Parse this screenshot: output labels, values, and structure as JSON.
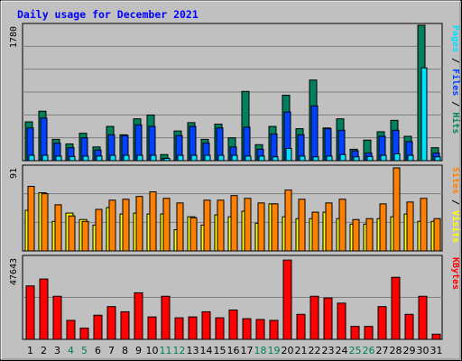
{
  "title": "Daily usage for December 2021",
  "chart_data": [
    {
      "type": "bar",
      "panel": "top",
      "ymax_label": "1780",
      "ylim": [
        0,
        1780
      ],
      "x": [
        1,
        2,
        3,
        4,
        5,
        6,
        7,
        8,
        9,
        10,
        11,
        12,
        13,
        14,
        15,
        16,
        17,
        18,
        19,
        20,
        21,
        22,
        23,
        24,
        25,
        26,
        27,
        28,
        29,
        30,
        31
      ],
      "series": [
        {
          "name": "Hits",
          "color": "#00805c",
          "values": [
            510,
            650,
            280,
            220,
            360,
            180,
            450,
            340,
            550,
            600,
            80,
            390,
            500,
            280,
            480,
            300,
            910,
            210,
            450,
            860,
            420,
            1060,
            430,
            550,
            150,
            270,
            380,
            530,
            320,
            1780,
            170
          ]
        },
        {
          "name": "Files",
          "color": "#0040ff",
          "values": [
            430,
            560,
            230,
            170,
            300,
            140,
            340,
            330,
            470,
            450,
            30,
            330,
            450,
            230,
            430,
            180,
            440,
            150,
            350,
            640,
            340,
            720,
            420,
            400,
            130,
            100,
            320,
            400,
            250,
            0,
            100
          ]
        },
        {
          "name": "Pages",
          "color": "#00e0ff",
          "values": [
            70,
            70,
            60,
            55,
            60,
            60,
            70,
            70,
            70,
            70,
            30,
            70,
            70,
            70,
            70,
            70,
            60,
            60,
            50,
            160,
            60,
            50,
            60,
            80,
            50,
            55,
            70,
            90,
            70,
            1220,
            50
          ]
        }
      ]
    },
    {
      "type": "bar",
      "panel": "middle",
      "ymax_label": "91",
      "ylim": [
        0,
        91
      ],
      "series": [
        {
          "name": "Visits",
          "color": "#ffff00",
          "values": [
            44,
            63,
            32,
            41,
            34,
            28,
            47,
            40,
            41,
            40,
            40,
            23,
            37,
            28,
            39,
            37,
            43,
            30,
            51,
            37,
            35,
            35,
            42,
            35,
            29,
            29,
            35,
            37,
            40,
            32,
            32
          ]
        },
        {
          "name": "Sites",
          "color": "#ff8000",
          "values": [
            70,
            62,
            50,
            38,
            32,
            45,
            55,
            56,
            59,
            64,
            57,
            52,
            36,
            55,
            55,
            60,
            57,
            52,
            51,
            66,
            56,
            42,
            52,
            56,
            34,
            35,
            51,
            90,
            53,
            57,
            35
          ]
        }
      ]
    },
    {
      "type": "bar",
      "panel": "bottom",
      "ymax_label": "47643",
      "ylim": [
        0,
        47643
      ],
      "series": [
        {
          "name": "KBytes",
          "color": "#ff0000",
          "values": [
            31000,
            35000,
            25000,
            11000,
            6500,
            14000,
            19000,
            16000,
            27000,
            13000,
            25000,
            12500,
            13000,
            16000,
            12500,
            17000,
            12000,
            11500,
            11000,
            46000,
            14500,
            25000,
            24000,
            21000,
            7500,
            7500,
            19000,
            36000,
            14500,
            25000,
            3000
          ]
        }
      ]
    }
  ],
  "x_labels": [
    {
      "t": "1",
      "c": "#000000"
    },
    {
      "t": "2",
      "c": "#000000"
    },
    {
      "t": "3",
      "c": "#000000"
    },
    {
      "t": "4",
      "c": "#00805c"
    },
    {
      "t": "5",
      "c": "#00805c"
    },
    {
      "t": "6",
      "c": "#000000"
    },
    {
      "t": "7",
      "c": "#000000"
    },
    {
      "t": "8",
      "c": "#000000"
    },
    {
      "t": "9",
      "c": "#000000"
    },
    {
      "t": "10",
      "c": "#000000"
    },
    {
      "t": "11",
      "c": "#00805c"
    },
    {
      "t": "12",
      "c": "#00805c"
    },
    {
      "t": "13",
      "c": "#000000"
    },
    {
      "t": "14",
      "c": "#000000"
    },
    {
      "t": "15",
      "c": "#000000"
    },
    {
      "t": "16",
      "c": "#000000"
    },
    {
      "t": "17",
      "c": "#000000"
    },
    {
      "t": "18",
      "c": "#00805c"
    },
    {
      "t": "19",
      "c": "#00805c"
    },
    {
      "t": "20",
      "c": "#000000"
    },
    {
      "t": "21",
      "c": "#000000"
    },
    {
      "t": "22",
      "c": "#000000"
    },
    {
      "t": "23",
      "c": "#000000"
    },
    {
      "t": "24",
      "c": "#000000"
    },
    {
      "t": "25",
      "c": "#00805c"
    },
    {
      "t": "26",
      "c": "#00805c"
    },
    {
      "t": "27",
      "c": "#000000"
    },
    {
      "t": "28",
      "c": "#000000"
    },
    {
      "t": "29",
      "c": "#000000"
    },
    {
      "t": "30",
      "c": "#000000"
    },
    {
      "t": "31",
      "c": "#000000"
    }
  ],
  "right_labels": {
    "top": [
      {
        "t": "Pages",
        "c": "#00e0ff"
      },
      {
        "t": " / ",
        "c": "#000000"
      },
      {
        "t": "Files",
        "c": "#0040ff"
      },
      {
        "t": " / ",
        "c": "#000000"
      },
      {
        "t": "Hits",
        "c": "#00805c"
      }
    ],
    "middle": [
      {
        "t": "Sites",
        "c": "#ff8000"
      },
      {
        "t": " / ",
        "c": "#000000"
      },
      {
        "t": "Visits",
        "c": "#ffff00"
      }
    ],
    "bottom": [
      {
        "t": "KBytes",
        "c": "#ff0000"
      }
    ]
  },
  "colors": {
    "frame_bg": "#c0c0c0",
    "plot_bg": "#c0c0c0",
    "title": "#0000ff",
    "grid": "#808080"
  }
}
